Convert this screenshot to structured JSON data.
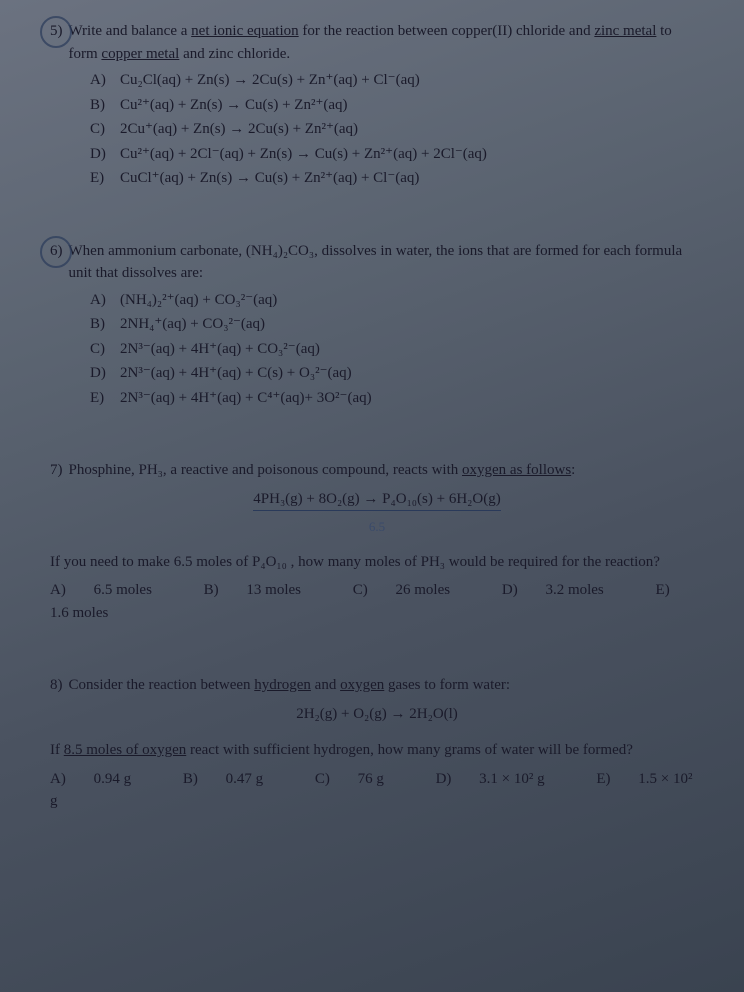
{
  "q5": {
    "num": "5)",
    "text_part1": "Write and balance a ",
    "text_underline": "net ionic equation",
    "text_part2": " for the reaction between copper(II) chloride and ",
    "text_underline2": "zinc metal",
    "text_part3": " to form ",
    "text_underline3": "copper metal",
    "text_part4": " and zinc chloride.",
    "choices": {
      "A": "Cu₂Cl(aq) + Zn(s) → 2Cu(s) + Zn⁺(aq) + Cl⁻(aq)",
      "B": "Cu²⁺(aq) + Zn(s) → Cu(s) + Zn²⁺(aq)",
      "C": "2Cu⁺(aq) + Zn(s) → 2Cu(s) + Zn²⁺(aq)",
      "D": "Cu²⁺(aq) + 2Cl⁻(aq) + Zn(s) → Cu(s) + Zn²⁺(aq) + 2Cl⁻(aq)",
      "E": "CuCl⁺(aq) + Zn(s) → Cu(s) + Zn²⁺(aq) + Cl⁻(aq)"
    }
  },
  "q6": {
    "num": "6)",
    "text": "When ammonium carbonate, (NH₄)₂CO₃, dissolves in water, the ions that are formed for each formula unit that dissolves are:",
    "choices": {
      "A": "(NH₄)₂²⁺(aq) + CO₃²⁻(aq)",
      "B": "2NH₄⁺(aq) + CO₃²⁻(aq)",
      "C": "2N³⁻(aq) + 4H⁺(aq) + CO₃²⁻(aq)",
      "D": "2N³⁻(aq) + 4H⁺(aq) + C(s) + O₃²⁻(aq)",
      "E": "2N³⁻(aq) + 4H⁺(aq) + C⁴⁺(aq)+ 3O²⁻(aq)"
    }
  },
  "q7": {
    "num": "7)",
    "text_part1": "Phosphine, PH₃, a reactive and poisonous compound, reacts with ",
    "text_underline": "oxygen as follows",
    "text_part2": ":",
    "equation": "4PH₃(g) + 8O₂(g) → P₄O₁₀(s) + 6H₂O(g)",
    "hand": "6.5",
    "sub": "If you need to make 6.5 moles of P₄O₁₀ , how many moles of PH₃ would be required for the reaction?",
    "choices": {
      "A": "6.5 moles",
      "B": "13 moles",
      "C": "26 moles",
      "D": "3.2 moles",
      "E": "1.6 moles"
    }
  },
  "q8": {
    "num": "8)",
    "text_part1": "Consider the reaction between ",
    "text_underline1": "hydrogen",
    "text_part2": " and ",
    "text_underline2": "oxygen",
    "text_part3": " gases to form water:",
    "equation": "2H₂(g) + O₂(g) → 2H₂O(l)",
    "sub_part1": "If ",
    "sub_underline": "8.5 moles of oxygen",
    "sub_part2": " react with sufficient hydrogen, how many grams of water will be formed?",
    "choices": {
      "A": "0.94 g",
      "B": "0.47 g",
      "C": "76 g",
      "D": "3.1 × 10² g",
      "E": "1.5 × 10² g"
    }
  },
  "labels": {
    "A": "A)",
    "B": "B)",
    "C": "C)",
    "D": "D)",
    "E": "E)"
  }
}
